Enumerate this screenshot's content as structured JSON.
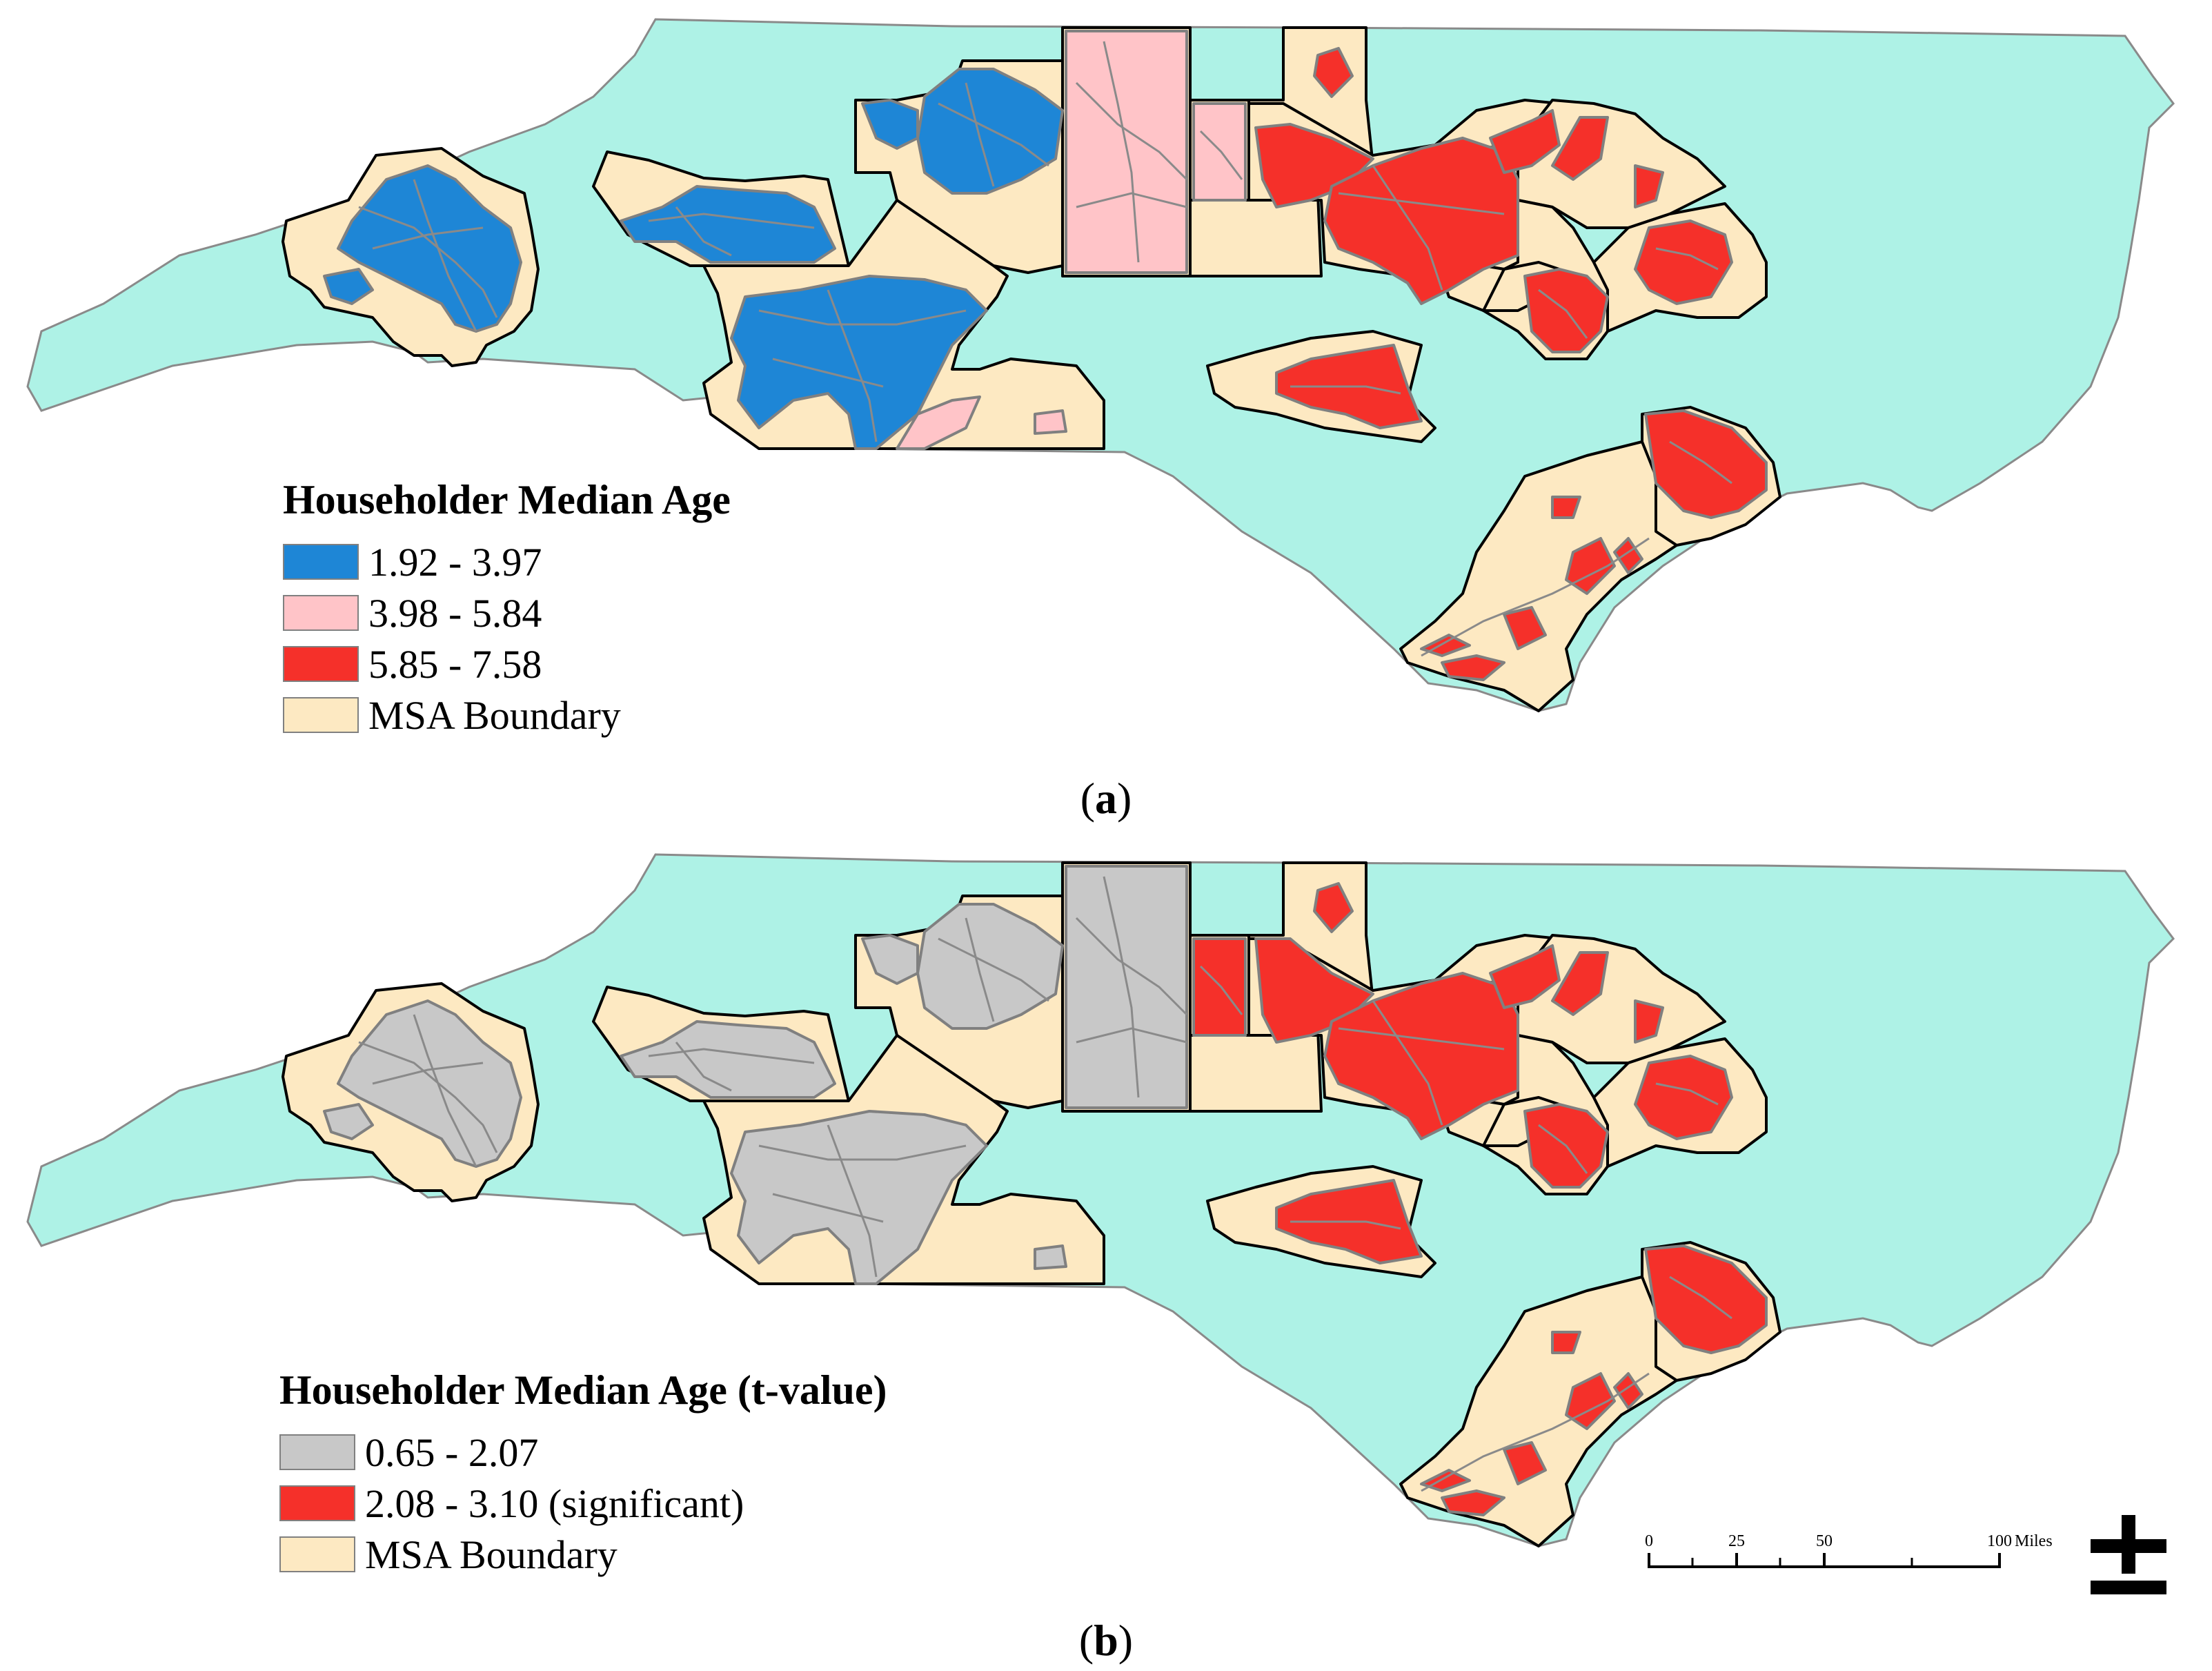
{
  "panel_a": {
    "legend": {
      "title": "Householder Median Age",
      "items": [
        {
          "label": "1.92 - 3.97",
          "color": "#1e86d6"
        },
        {
          "label": "3.98 - 5.84",
          "color": "#ffc4c8"
        },
        {
          "label": "5.85 - 7.58",
          "color": "#f5302a"
        },
        {
          "label": "MSA Boundary",
          "color": "#fde9c2"
        }
      ]
    },
    "caption": {
      "open": "(",
      "letter": "a",
      "close": ")"
    }
  },
  "panel_b": {
    "legend": {
      "title": "Householder Median Age (t-value)",
      "items": [
        {
          "label": "0.65 - 2.07",
          "color": "#c8c8c8"
        },
        {
          "label": "2.08 - 3.10 (significant)",
          "color": "#f5302a"
        },
        {
          "label": "MSA Boundary",
          "color": "#fde9c2"
        }
      ]
    },
    "caption": {
      "open": "(",
      "letter": "b",
      "close": ")"
    }
  },
  "scale": {
    "ticks": [
      "0",
      "25",
      "50",
      "100"
    ],
    "unit": "Miles"
  },
  "colors": {
    "state_fill": "#aef2e6",
    "msa_fill": "#fde9c2",
    "blue": "#1e86d6",
    "pink": "#ffc4c8",
    "red": "#f5302a",
    "gray": "#c8c8c8"
  }
}
